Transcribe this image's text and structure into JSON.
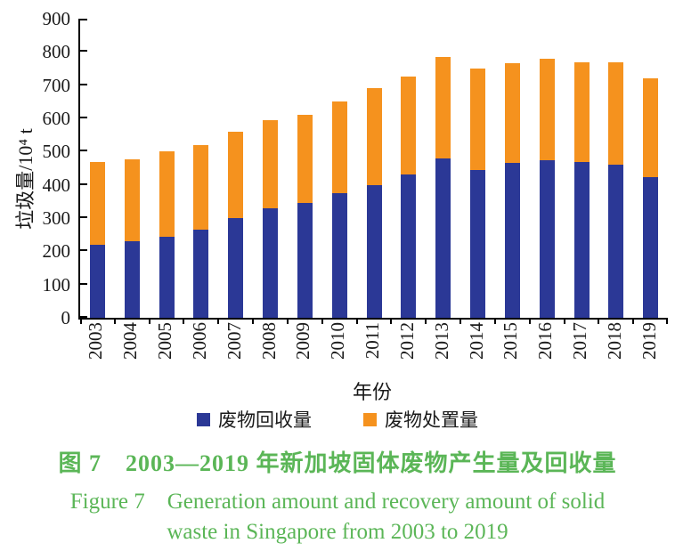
{
  "figure": {
    "caption_cn": "图 7 2003—2019 年新加坡固体废物产生量及回收量",
    "caption_en_line1": "Figure 7 Generation amount and recovery amount of solid",
    "caption_en_line2": "waste in Singapore from 2003 to 2019"
  },
  "chart_data": {
    "type": "bar",
    "stacked": true,
    "title": "",
    "xlabel": "年份",
    "ylabel": "垃圾量/10⁴ t",
    "ylim": [
      0,
      900
    ],
    "ytick_step": 100,
    "grid": false,
    "legend_position": "bottom",
    "categories": [
      "2003",
      "2004",
      "2005",
      "2006",
      "2007",
      "2008",
      "2009",
      "2010",
      "2011",
      "2012",
      "2013",
      "2014",
      "2015",
      "2016",
      "2017",
      "2018",
      "2019"
    ],
    "series": [
      {
        "name": "废物回收量",
        "color": "#2B3896",
        "values": [
          220,
          230,
          245,
          265,
          300,
          330,
          345,
          375,
          400,
          430,
          480,
          445,
          465,
          475,
          470,
          462,
          422
        ]
      },
      {
        "name": "废物处置量",
        "color": "#F5921E",
        "values": [
          250,
          248,
          257,
          255,
          260,
          265,
          265,
          275,
          290,
          295,
          305,
          305,
          300,
          305,
          300,
          308,
          298
        ]
      }
    ],
    "totals": [
      470,
      478,
      502,
      520,
      560,
      595,
      610,
      650,
      690,
      725,
      785,
      750,
      765,
      780,
      770,
      770,
      720
    ]
  },
  "colors": {
    "recovery_blue": "#2B3896",
    "disposal_orange": "#F5921E",
    "caption_green": "#5BB657",
    "axis_black": "#000000"
  }
}
